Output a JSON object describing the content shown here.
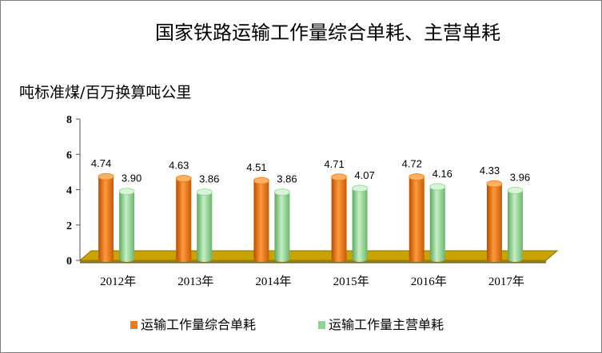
{
  "chart_data": {
    "type": "bar",
    "title": "国家铁路运输工作量综合单耗、主营单耗",
    "ylabel": "吨标准煤/百万换算吨公里",
    "xlabel": "",
    "categories": [
      "2012年",
      "2013年",
      "2014年",
      "2015年",
      "2016年",
      "2017年"
    ],
    "series": [
      {
        "name": "运输工作量综合单耗",
        "values": [
          4.74,
          4.63,
          4.51,
          4.71,
          4.72,
          4.33
        ],
        "labels": [
          "4.74",
          "4.63",
          "4.51",
          "4.71",
          "4.72",
          "4.33"
        ],
        "color": "#f07a1a"
      },
      {
        "name": "运输工作量主营单耗",
        "values": [
          3.9,
          3.86,
          3.86,
          4.07,
          4.16,
          3.96
        ],
        "labels": [
          "3.90",
          "3.86",
          "3.86",
          "4.07",
          "4.16",
          "3.96"
        ],
        "color": "#8ed38e"
      }
    ],
    "yticks": [
      "0",
      "2",
      "4",
      "6",
      "8"
    ],
    "ylim": [
      0,
      8
    ],
    "grid": false,
    "legend": "bottom",
    "floor_color": "#c9a400"
  }
}
